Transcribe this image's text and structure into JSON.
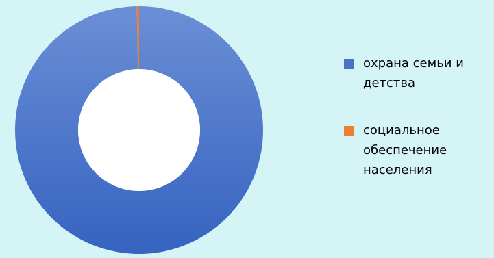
{
  "chart_data": {
    "type": "pie",
    "style": "donut",
    "title": "",
    "legend_position": "right",
    "slices": [
      {
        "label": "охрана семьи и детства",
        "value": 99.7,
        "color": "#4a72c8"
      },
      {
        "label": "социальное обеспечение населения",
        "value": 0.3,
        "color": "#ed7d31"
      }
    ]
  }
}
